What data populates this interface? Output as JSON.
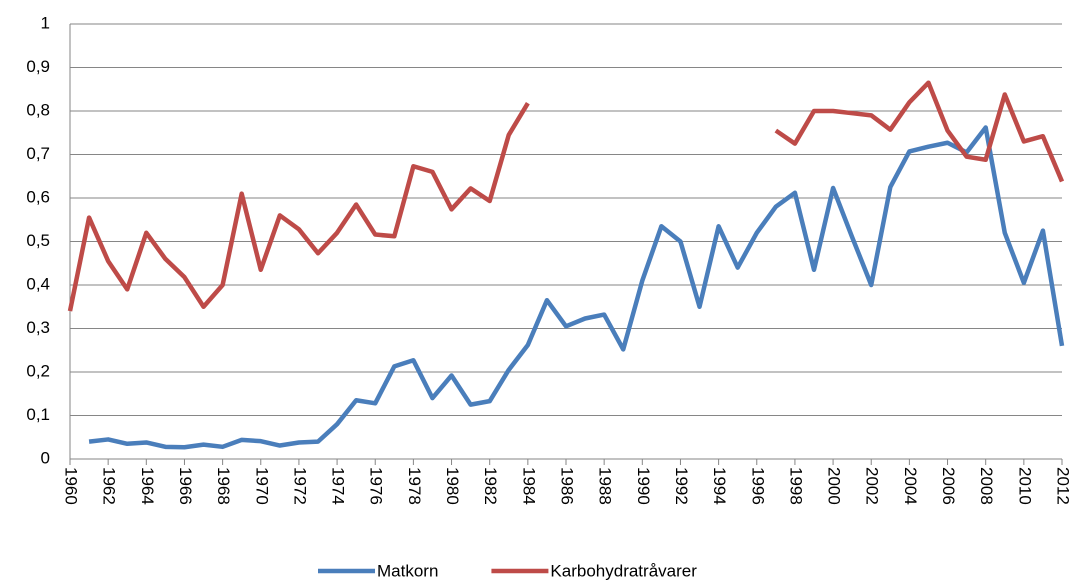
{
  "chart_data": {
    "type": "line",
    "x": [
      1960,
      1961,
      1962,
      1963,
      1964,
      1965,
      1966,
      1967,
      1968,
      1969,
      1970,
      1971,
      1972,
      1973,
      1974,
      1975,
      1976,
      1977,
      1978,
      1979,
      1980,
      1981,
      1982,
      1983,
      1984,
      1985,
      1986,
      1987,
      1988,
      1989,
      1990,
      1991,
      1992,
      1993,
      1994,
      1995,
      1996,
      1997,
      1998,
      1999,
      2000,
      2001,
      2002,
      2003,
      2004,
      2005,
      2006,
      2007,
      2008,
      2009,
      2010,
      2011,
      2012
    ],
    "series": [
      {
        "name": "Matkorn",
        "color": "#4a7ebb",
        "values": [
          null,
          0.04,
          0.045,
          0.035,
          0.038,
          0.028,
          0.027,
          0.033,
          0.028,
          0.044,
          0.041,
          0.031,
          0.038,
          0.04,
          0.08,
          0.135,
          0.128,
          0.213,
          0.227,
          0.14,
          0.192,
          0.125,
          0.133,
          0.205,
          0.262,
          0.365,
          0.305,
          0.323,
          0.332,
          0.252,
          0.41,
          0.535,
          0.5,
          0.35,
          0.535,
          0.44,
          0.52,
          0.58,
          0.612,
          0.435,
          0.623,
          0.51,
          0.4,
          0.625,
          0.707,
          0.718,
          0.727,
          0.705,
          0.762,
          0.52,
          0.405,
          0.525,
          0.26
        ]
      },
      {
        "name": "Karbohydratråvarer",
        "color": "#be4b48",
        "values": [
          0.34,
          0.555,
          0.455,
          0.39,
          0.52,
          0.46,
          0.418,
          0.35,
          0.4,
          0.61,
          0.435,
          0.56,
          0.528,
          0.473,
          0.52,
          0.585,
          0.516,
          0.512,
          0.673,
          0.66,
          0.574,
          0.622,
          0.593,
          0.745,
          0.818,
          null,
          null,
          null,
          null,
          null,
          null,
          null,
          null,
          null,
          null,
          null,
          null,
          0.755,
          0.725,
          0.8,
          0.8,
          0.795,
          0.79,
          0.757,
          0.82,
          0.865,
          0.755,
          0.695,
          0.688,
          0.838,
          0.73,
          0.742,
          0.638
        ]
      }
    ],
    "xlim": [
      1960,
      2012
    ],
    "xticks": [
      1960,
      1962,
      1964,
      1966,
      1968,
      1970,
      1972,
      1974,
      1976,
      1978,
      1980,
      1982,
      1984,
      1986,
      1988,
      1990,
      1992,
      1994,
      1996,
      1998,
      2000,
      2002,
      2004,
      2006,
      2008,
      2010,
      2012
    ],
    "ylim": [
      0,
      1
    ],
    "yticks": [
      0,
      {
        "value": 0.1,
        "label": "0,1"
      },
      {
        "value": 0.2,
        "label": "0,2"
      },
      {
        "value": 0.3,
        "label": "0,3"
      },
      {
        "value": 0.4,
        "label": "0,4"
      },
      {
        "value": 0.5,
        "label": "0,5"
      },
      {
        "value": 0.6,
        "label": "0,6"
      },
      {
        "value": 0.7,
        "label": "0,7"
      },
      {
        "value": 0.8,
        "label": "0,8"
      },
      {
        "value": 0.9,
        "label": "0,9"
      },
      1
    ],
    "grid": true
  }
}
